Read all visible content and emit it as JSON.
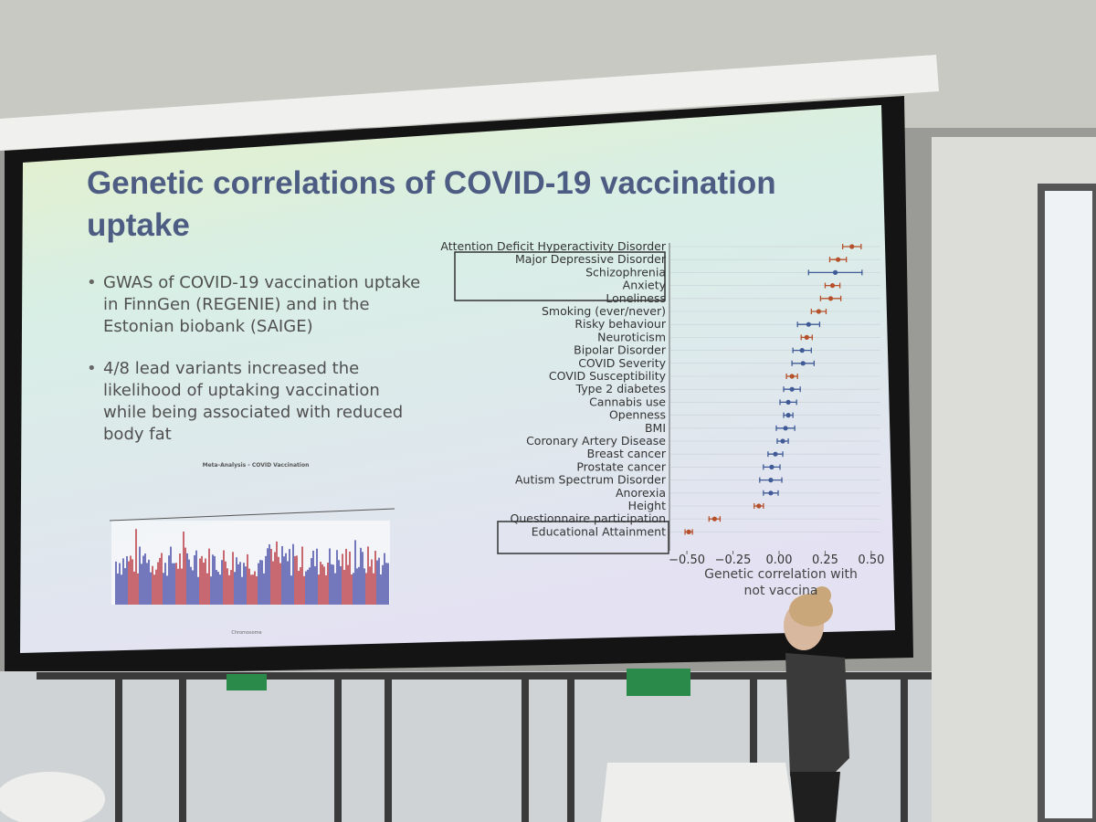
{
  "slide": {
    "title": "Genetic correlations of COVID-19 vaccination uptake",
    "bullets": [
      "GWAS of COVID-19 vaccination uptake in FinnGen (REGENIE) and in the Estonian biobank (SAIGE)",
      "4/8 lead variants increased the likelihood of uptaking vaccination while being associated with reduced body fat"
    ],
    "manhattan_title": "Meta-Analysis - COVID Vaccination",
    "manhattan_xlabel": "Chromosome"
  },
  "chart_data": {
    "type": "forest",
    "categories": [
      "Attention Deficit Hyperactivity Disorder",
      "Major Depressive Disorder",
      "Schizophrenia",
      "Anxiety",
      "Loneliness",
      "Smoking (ever/never)",
      "Risky behaviour",
      "Neuroticism",
      "Bipolar Disorder",
      "COVID Severity",
      "COVID Susceptibility",
      "Type 2 diabetes",
      "Cannabis use",
      "Openness",
      "BMI",
      "Coronary Artery Disease",
      "Breast cancer",
      "Prostate cancer",
      "Autism Spectrum Disorder",
      "Anorexia",
      "Height",
      "Questionnaire participation",
      "Educational Attainment"
    ],
    "values": [
      0.395,
      0.32,
      0.305,
      0.29,
      0.28,
      0.215,
      0.16,
      0.15,
      0.125,
      0.13,
      0.07,
      0.07,
      0.05,
      0.05,
      0.035,
      0.02,
      -0.02,
      -0.04,
      -0.045,
      -0.045,
      -0.11,
      -0.35,
      -0.49
    ],
    "errors": [
      0.05,
      0.045,
      0.145,
      0.04,
      0.055,
      0.04,
      0.06,
      0.03,
      0.05,
      0.06,
      0.03,
      0.045,
      0.045,
      0.025,
      0.05,
      0.03,
      0.04,
      0.045,
      0.06,
      0.04,
      0.025,
      0.03,
      0.02
    ],
    "point_colors": [
      "#b5502a",
      "#b5502a",
      "#3f5a96",
      "#b5502a",
      "#b5502a",
      "#b5502a",
      "#3f5a96",
      "#b5502a",
      "#3f5a96",
      "#3f5a96",
      "#b5502a",
      "#3f5a96",
      "#3f5a96",
      "#3f5a96",
      "#3f5a96",
      "#3f5a96",
      "#3f5a96",
      "#3f5a96",
      "#3f5a96",
      "#3f5a96",
      "#b5502a",
      "#b5502a",
      "#b5502a"
    ],
    "xlabel": "Genetic correlation with not vaccina",
    "xlim": [
      -0.55,
      0.55
    ],
    "xticks": [
      {
        "value": -0.5,
        "label": "−0.50"
      },
      {
        "value": -0.25,
        "label": "−0.25"
      },
      {
        "value": 0,
        "label": "0.00"
      },
      {
        "value": 0.25,
        "label": "0.25"
      },
      {
        "value": 0.5,
        "label": "0.50"
      }
    ],
    "grid": true
  }
}
